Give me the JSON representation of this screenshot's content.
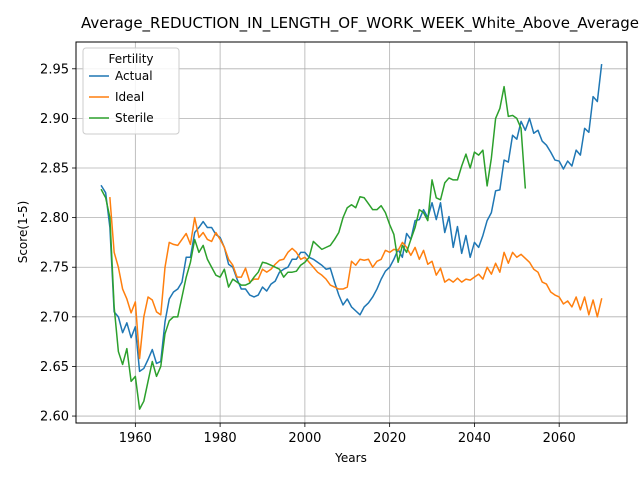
{
  "chart_data": {
    "type": "line",
    "title": "Average_REDUCTION_IN_LENGTH_OF_WORK_WEEK_White_Above_Average",
    "xlabel": "Years",
    "ylabel": "Score(1-5)",
    "xlim": [
      1946,
      2076
    ],
    "ylim": [
      2.593,
      2.977
    ],
    "xticks": [
      1960,
      1980,
      2000,
      2020,
      2040,
      2060
    ],
    "yticks": [
      2.6,
      2.65,
      2.7,
      2.75,
      2.8,
      2.85,
      2.9,
      2.95
    ],
    "grid": true,
    "legend": {
      "title": "Fertility",
      "placement": "top-left"
    },
    "series": [
      {
        "name": "Actual",
        "color": "#1f77b4",
        "x": [
          1952,
          1953,
          1954,
          1955,
          1956,
          1957,
          1958,
          1959,
          1960,
          1961,
          1962,
          1963,
          1964,
          1965,
          1966,
          1967,
          1968,
          1969,
          1970,
          1971,
          1972,
          1973,
          1974,
          1975,
          1976,
          1977,
          1978,
          1979,
          1980,
          1981,
          1982,
          1983,
          1984,
          1985,
          1986,
          1987,
          1988,
          1989,
          1990,
          1991,
          1992,
          1993,
          1994,
          1995,
          1996,
          1997,
          1998,
          1999,
          2000,
          2001,
          2002,
          2003,
          2004,
          2005,
          2006,
          2007,
          2008,
          2009,
          2010,
          2011,
          2012,
          2013,
          2014,
          2015,
          2016,
          2017,
          2018,
          2019,
          2020,
          2021,
          2022,
          2023,
          2024,
          2025,
          2026,
          2027,
          2028,
          2029,
          2030,
          2031,
          2032,
          2033,
          2034,
          2035,
          2036,
          2037,
          2038,
          2039,
          2040,
          2041,
          2042,
          2043,
          2044,
          2045,
          2046,
          2047,
          2048,
          2049,
          2050,
          2051,
          2052,
          2053,
          2054,
          2055,
          2056,
          2057,
          2058,
          2059,
          2060,
          2061,
          2062,
          2063,
          2064,
          2065,
          2066,
          2067,
          2068,
          2069,
          2070
        ],
        "y": [
          2.832,
          2.825,
          2.79,
          2.705,
          2.7,
          2.684,
          2.694,
          2.679,
          2.69,
          2.645,
          2.648,
          2.657,
          2.667,
          2.653,
          2.655,
          2.695,
          2.718,
          2.725,
          2.728,
          2.735,
          2.76,
          2.76,
          2.785,
          2.79,
          2.796,
          2.79,
          2.79,
          2.783,
          2.78,
          2.77,
          2.753,
          2.75,
          2.738,
          2.728,
          2.728,
          2.722,
          2.72,
          2.722,
          2.73,
          2.726,
          2.733,
          2.736,
          2.745,
          2.748,
          2.75,
          2.758,
          2.758,
          2.765,
          2.765,
          2.76,
          2.758,
          2.755,
          2.752,
          2.748,
          2.749,
          2.735,
          2.722,
          2.712,
          2.718,
          2.71,
          2.706,
          2.702,
          2.71,
          2.714,
          2.72,
          2.728,
          2.738,
          2.746,
          2.75,
          2.758,
          2.768,
          2.76,
          2.784,
          2.778,
          2.797,
          2.798,
          2.808,
          2.8,
          2.815,
          2.798,
          2.815,
          2.785,
          2.801,
          2.77,
          2.791,
          2.764,
          2.782,
          2.76,
          2.775,
          2.77,
          2.782,
          2.797,
          2.805,
          2.827,
          2.828,
          2.858,
          2.856,
          2.883,
          2.879,
          2.897,
          2.888,
          2.9,
          2.885,
          2.888,
          2.877,
          2.873,
          2.866,
          2.858,
          2.857,
          2.849,
          2.857,
          2.852,
          2.868,
          2.863,
          2.89,
          2.886,
          2.922,
          2.917,
          2.954
        ]
      },
      {
        "name": "Ideal",
        "color": "#ff7f0e",
        "x": [
          1954,
          1955,
          1956,
          1957,
          1958,
          1959,
          1960,
          1961,
          1962,
          1963,
          1964,
          1965,
          1966,
          1967,
          1968,
          1969,
          1970,
          1971,
          1972,
          1973,
          1974,
          1975,
          1976,
          1977,
          1978,
          1979,
          1980,
          1981,
          1982,
          1983,
          1984,
          1985,
          1986,
          1987,
          1988,
          1989,
          1990,
          1991,
          1992,
          1993,
          1994,
          1995,
          1996,
          1997,
          1998,
          1999,
          2000,
          2001,
          2002,
          2003,
          2004,
          2005,
          2006,
          2007,
          2008,
          2009,
          2010,
          2011,
          2012,
          2013,
          2014,
          2015,
          2016,
          2017,
          2018,
          2019,
          2020,
          2021,
          2022,
          2023,
          2024,
          2025,
          2026,
          2027,
          2028,
          2029,
          2030,
          2031,
          2032,
          2033,
          2034,
          2035,
          2036,
          2037,
          2038,
          2039,
          2040,
          2041,
          2042,
          2043,
          2044,
          2045,
          2046,
          2047,
          2048,
          2049,
          2050,
          2051,
          2052,
          2053,
          2054,
          2055,
          2056,
          2057,
          2058,
          2059,
          2060,
          2061,
          2062,
          2063,
          2064,
          2065,
          2066,
          2067,
          2068,
          2069,
          2070
        ],
        "y": [
          2.82,
          2.765,
          2.75,
          2.728,
          2.718,
          2.704,
          2.715,
          2.658,
          2.7,
          2.72,
          2.717,
          2.705,
          2.702,
          2.75,
          2.775,
          2.773,
          2.772,
          2.778,
          2.784,
          2.773,
          2.8,
          2.78,
          2.785,
          2.778,
          2.776,
          2.785,
          2.778,
          2.77,
          2.758,
          2.752,
          2.74,
          2.74,
          2.749,
          2.735,
          2.738,
          2.738,
          2.748,
          2.745,
          2.748,
          2.753,
          2.757,
          2.758,
          2.765,
          2.769,
          2.765,
          2.758,
          2.76,
          2.755,
          2.75,
          2.745,
          2.742,
          2.738,
          2.732,
          2.73,
          2.728,
          2.728,
          2.73,
          2.756,
          2.752,
          2.758,
          2.757,
          2.758,
          2.75,
          2.756,
          2.758,
          2.767,
          2.765,
          2.768,
          2.767,
          2.775,
          2.77,
          2.762,
          2.77,
          2.758,
          2.767,
          2.753,
          2.756,
          2.742,
          2.749,
          2.735,
          2.738,
          2.735,
          2.739,
          2.735,
          2.738,
          2.737,
          2.74,
          2.743,
          2.738,
          2.75,
          2.743,
          2.754,
          2.745,
          2.765,
          2.754,
          2.765,
          2.76,
          2.763,
          2.759,
          2.755,
          2.748,
          2.745,
          2.735,
          2.733,
          2.725,
          2.722,
          2.72,
          2.713,
          2.716,
          2.71,
          2.72,
          2.707,
          2.72,
          2.702,
          2.717,
          2.7,
          2.718
        ]
      },
      {
        "name": "Sterile",
        "color": "#2ca02c",
        "x": [
          1952,
          1953,
          1954,
          1955,
          1956,
          1957,
          1958,
          1959,
          1960,
          1961,
          1962,
          1963,
          1964,
          1965,
          1966,
          1967,
          1968,
          1969,
          1970,
          1971,
          1972,
          1973,
          1974,
          1975,
          1976,
          1977,
          1978,
          1979,
          1980,
          1981,
          1982,
          1983,
          1984,
          1985,
          1986,
          1987,
          1988,
          1989,
          1990,
          1991,
          1992,
          1993,
          1994,
          1995,
          1996,
          1997,
          1998,
          1999,
          2000,
          2001,
          2002,
          2003,
          2004,
          2005,
          2006,
          2007,
          2008,
          2009,
          2010,
          2011,
          2012,
          2013,
          2014,
          2015,
          2016,
          2017,
          2018,
          2019,
          2020,
          2021,
          2022,
          2023,
          2024,
          2025,
          2026,
          2027,
          2028,
          2029,
          2030,
          2031,
          2032,
          2033,
          2034,
          2035,
          2036,
          2037,
          2038,
          2039,
          2040,
          2041,
          2042,
          2043,
          2044,
          2045,
          2046,
          2047,
          2048,
          2049,
          2050,
          2051,
          2052
        ],
        "y": [
          2.828,
          2.82,
          2.8,
          2.71,
          2.665,
          2.652,
          2.668,
          2.635,
          2.64,
          2.607,
          2.615,
          2.635,
          2.655,
          2.64,
          2.65,
          2.683,
          2.696,
          2.7,
          2.7,
          2.72,
          2.74,
          2.755,
          2.778,
          2.765,
          2.772,
          2.758,
          2.75,
          2.742,
          2.74,
          2.748,
          2.73,
          2.738,
          2.735,
          2.732,
          2.732,
          2.734,
          2.74,
          2.745,
          2.755,
          2.754,
          2.752,
          2.75,
          2.748,
          2.74,
          2.745,
          2.745,
          2.746,
          2.752,
          2.755,
          2.76,
          2.776,
          2.772,
          2.768,
          2.77,
          2.772,
          2.778,
          2.785,
          2.8,
          2.81,
          2.813,
          2.81,
          2.821,
          2.82,
          2.814,
          2.808,
          2.808,
          2.812,
          2.805,
          2.793,
          2.783,
          2.755,
          2.772,
          2.765,
          2.778,
          2.79,
          2.808,
          2.805,
          2.797,
          2.838,
          2.82,
          2.818,
          2.835,
          2.84,
          2.838,
          2.838,
          2.852,
          2.864,
          2.85,
          2.866,
          2.863,
          2.868,
          2.832,
          2.86,
          2.9,
          2.91,
          2.932,
          2.902,
          2.903,
          2.9,
          2.89,
          2.83
        ]
      }
    ]
  }
}
